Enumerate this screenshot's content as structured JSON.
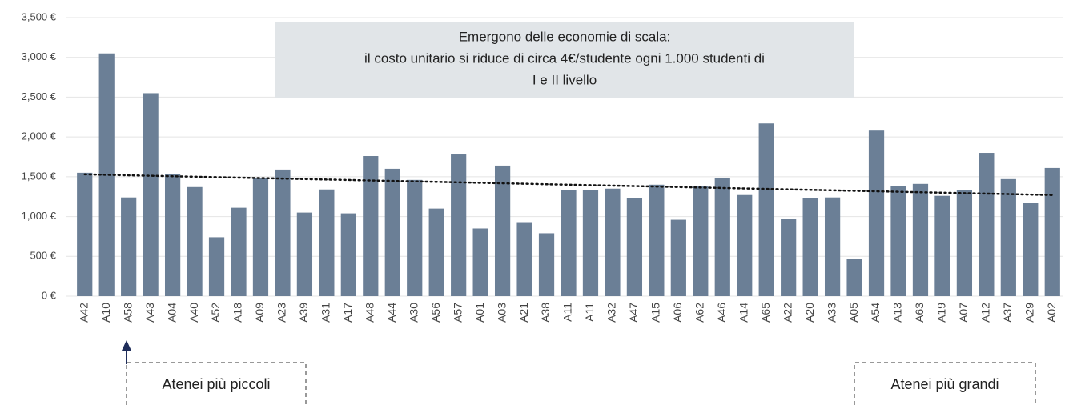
{
  "chart_data": {
    "type": "bar",
    "categories": [
      "A42",
      "A10",
      "A58",
      "A43",
      "A04",
      "A40",
      "A52",
      "A18",
      "A09",
      "A23",
      "A39",
      "A31",
      "A17",
      "A48",
      "A44",
      "A30",
      "A56",
      "A57",
      "A01",
      "A03",
      "A21",
      "A38",
      "A11",
      "A11",
      "A32",
      "A47",
      "A15",
      "A06",
      "A62",
      "A46",
      "A14",
      "A65",
      "A22",
      "A20",
      "A33",
      "A05",
      "A54",
      "A13",
      "A63",
      "A19",
      "A07",
      "A12",
      "A37",
      "A29",
      "A02"
    ],
    "values": [
      1550,
      3050,
      1240,
      2550,
      1530,
      1370,
      740,
      1110,
      1480,
      1590,
      1050,
      1340,
      1040,
      1760,
      1600,
      1460,
      1100,
      1780,
      850,
      1640,
      930,
      790,
      1330,
      1330,
      1350,
      1230,
      1400,
      960,
      1380,
      1480,
      1270,
      2170,
      970,
      1230,
      1240,
      470,
      2080,
      1380,
      1410,
      1260,
      1330,
      1800,
      1470,
      1170,
      1610
    ],
    "color": "#6b7f96",
    "trendline": [
      1530,
      1270
    ],
    "ylim": [
      0,
      3500
    ],
    "yticks": [
      {
        "value": 0,
        "label": "0 €"
      },
      {
        "value": 500,
        "label": "500 €"
      },
      {
        "value": 1000,
        "label": "1,000 €"
      },
      {
        "value": 1500,
        "label": "1,500 €"
      },
      {
        "value": 2000,
        "label": "2,000 €"
      },
      {
        "value": 2500,
        "label": "2,500 €"
      },
      {
        "value": 3000,
        "label": "3,000 €"
      },
      {
        "value": 3500,
        "label": "3,500 €"
      }
    ],
    "grid": true,
    "annotation": [
      "Emergono delle economie di scala:",
      "il costo unitario si riduce di circa 4€/studente ogni 1.000 studenti di",
      "I e II livello"
    ],
    "left_note": "Atenei più piccoli",
    "right_note": "Atenei più grandi"
  }
}
